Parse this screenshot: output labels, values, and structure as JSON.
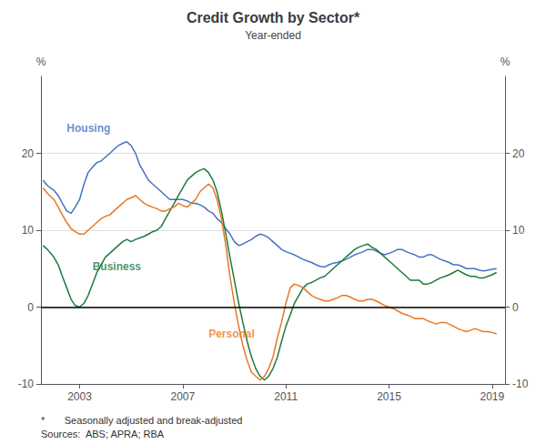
{
  "chart_data": {
    "type": "line",
    "title": "Credit Growth by Sector*",
    "subtitle": "Year-ended",
    "ylabel": "%",
    "y2label": "%",
    "xlim": [
      2001.5,
      2019.5
    ],
    "xticks": [
      2003,
      2007,
      2011,
      2015,
      2019
    ],
    "ylim": [
      -10,
      30
    ],
    "yticks": [
      -10,
      0,
      10,
      20
    ],
    "y2lim": [
      -10,
      30
    ],
    "y2ticks": [
      -10,
      0,
      10,
      20
    ],
    "grid": true,
    "hlines": [
      0
    ],
    "x": [
      2001.58,
      2001.75,
      2002.0,
      2002.17,
      2002.33,
      2002.5,
      2002.67,
      2002.83,
      2003.0,
      2003.17,
      2003.33,
      2003.5,
      2003.67,
      2003.83,
      2004.0,
      2004.17,
      2004.33,
      2004.5,
      2004.67,
      2004.83,
      2005.0,
      2005.17,
      2005.33,
      2005.5,
      2005.67,
      2005.83,
      2006.0,
      2006.17,
      2006.33,
      2006.5,
      2006.67,
      2006.83,
      2007.0,
      2007.17,
      2007.33,
      2007.5,
      2007.67,
      2007.83,
      2008.0,
      2008.17,
      2008.33,
      2008.5,
      2008.67,
      2008.83,
      2009.0,
      2009.17,
      2009.33,
      2009.5,
      2009.67,
      2009.83,
      2010.0,
      2010.17,
      2010.33,
      2010.5,
      2010.67,
      2010.83,
      2011.0,
      2011.17,
      2011.33,
      2011.5,
      2011.67,
      2011.83,
      2012.0,
      2012.17,
      2012.33,
      2012.5,
      2012.67,
      2012.83,
      2013.0,
      2013.17,
      2013.33,
      2013.5,
      2013.67,
      2013.83,
      2014.0,
      2014.17,
      2014.33,
      2014.5,
      2014.67,
      2014.83,
      2015.0,
      2015.17,
      2015.33,
      2015.5,
      2015.67,
      2015.83,
      2016.0,
      2016.17,
      2016.33,
      2016.5,
      2016.67,
      2016.83,
      2017.0,
      2017.17,
      2017.33,
      2017.5,
      2017.67,
      2017.83,
      2018.0,
      2018.17,
      2018.33,
      2018.5,
      2018.67,
      2018.83,
      2019.0,
      2019.17
    ],
    "series": [
      {
        "color": "#4472C4",
        "values": [
          16.5,
          15.8,
          15.2,
          14.5,
          13.5,
          12.5,
          12.2,
          13.0,
          14.0,
          16.0,
          17.5,
          18.2,
          18.8,
          19.0,
          19.5,
          20.0,
          20.5,
          21.0,
          21.3,
          21.5,
          21.0,
          20.0,
          18.5,
          17.5,
          16.5,
          16.0,
          15.5,
          15.0,
          14.5,
          14.0,
          14.0,
          14.0,
          14.0,
          13.8,
          13.5,
          13.5,
          13.3,
          13.0,
          12.5,
          12.2,
          11.5,
          11.0,
          10.2,
          9.5,
          8.5,
          8.0,
          8.2,
          8.5,
          8.8,
          9.2,
          9.5,
          9.3,
          9.0,
          8.5,
          8.0,
          7.5,
          7.2,
          7.0,
          6.8,
          6.5,
          6.2,
          6.0,
          5.8,
          5.5,
          5.3,
          5.2,
          5.5,
          5.7,
          5.8,
          6.0,
          6.2,
          6.5,
          6.8,
          7.0,
          7.2,
          7.5,
          7.5,
          7.3,
          7.0,
          6.8,
          7.0,
          7.2,
          7.5,
          7.5,
          7.2,
          7.0,
          6.8,
          6.5,
          6.5,
          6.8,
          6.8,
          6.5,
          6.2,
          6.0,
          5.8,
          5.5,
          5.5,
          5.3,
          5.0,
          5.0,
          5.0,
          4.8,
          4.7,
          4.8,
          4.9,
          5.0
        ]
      },
      {
        "color": "#1F7A3C",
        "values": [
          8.0,
          7.5,
          6.5,
          5.5,
          4.0,
          2.5,
          1.0,
          0.2,
          0.0,
          0.5,
          1.5,
          3.0,
          4.5,
          5.5,
          6.5,
          7.0,
          7.5,
          8.0,
          8.5,
          8.8,
          8.5,
          8.8,
          9.0,
          9.2,
          9.5,
          9.8,
          10.0,
          10.5,
          11.5,
          12.5,
          13.5,
          14.5,
          15.5,
          16.5,
          17.0,
          17.5,
          17.8,
          18.0,
          17.5,
          16.5,
          15.0,
          12.5,
          9.5,
          6.5,
          3.5,
          0.5,
          -2.0,
          -4.5,
          -6.5,
          -8.0,
          -9.0,
          -9.5,
          -9.0,
          -8.0,
          -6.5,
          -4.5,
          -2.5,
          -1.0,
          0.5,
          1.5,
          2.5,
          3.0,
          3.2,
          3.5,
          3.8,
          4.0,
          4.5,
          5.0,
          5.5,
          6.0,
          6.5,
          7.0,
          7.5,
          7.8,
          8.0,
          8.2,
          7.8,
          7.5,
          7.0,
          6.5,
          6.0,
          5.5,
          5.0,
          4.5,
          4.0,
          3.5,
          3.5,
          3.5,
          3.0,
          3.0,
          3.2,
          3.5,
          3.8,
          4.0,
          4.2,
          4.5,
          4.8,
          4.5,
          4.2,
          4.0,
          4.0,
          3.8,
          3.8,
          4.0,
          4.2,
          4.5
        ]
      },
      {
        "color": "#E87722",
        "values": [
          15.5,
          14.8,
          14.0,
          13.0,
          12.0,
          11.0,
          10.2,
          9.8,
          9.5,
          9.5,
          10.0,
          10.5,
          11.0,
          11.5,
          11.8,
          12.0,
          12.5,
          13.0,
          13.5,
          14.0,
          14.2,
          14.5,
          14.0,
          13.5,
          13.2,
          13.0,
          12.8,
          12.5,
          12.5,
          12.8,
          13.0,
          13.5,
          13.2,
          13.0,
          13.5,
          14.0,
          15.0,
          15.5,
          16.0,
          15.5,
          14.0,
          11.5,
          8.0,
          4.0,
          0.5,
          -2.5,
          -5.0,
          -7.0,
          -8.5,
          -9.0,
          -9.5,
          -9.0,
          -8.0,
          -6.5,
          -4.0,
          -2.0,
          0.5,
          2.5,
          3.0,
          2.8,
          2.5,
          2.0,
          1.5,
          1.2,
          1.0,
          0.8,
          0.8,
          1.0,
          1.2,
          1.5,
          1.5,
          1.3,
          1.0,
          0.8,
          0.8,
          1.0,
          1.0,
          0.8,
          0.5,
          0.2,
          0.0,
          -0.2,
          -0.5,
          -0.8,
          -1.0,
          -1.2,
          -1.5,
          -1.5,
          -1.5,
          -1.8,
          -2.0,
          -2.2,
          -2.0,
          -2.0,
          -2.2,
          -2.5,
          -2.8,
          -3.0,
          -3.2,
          -3.0,
          -2.8,
          -3.0,
          -3.2,
          -3.2,
          -3.3,
          -3.5
        ]
      }
    ],
    "annotations": [
      {
        "text": "Housing",
        "x": 2002.5,
        "y": 22.5,
        "color": "#4472C4"
      },
      {
        "text": "Business",
        "x": 2003.5,
        "y": 4.5,
        "color": "#1F7A3C"
      },
      {
        "text": "Personal",
        "x": 2008.0,
        "y": -4.2,
        "color": "#E87722"
      }
    ],
    "footnotes": [
      "*       Seasonally adjusted and break-adjusted",
      "Sources:  ABS; APRA; RBA"
    ]
  }
}
